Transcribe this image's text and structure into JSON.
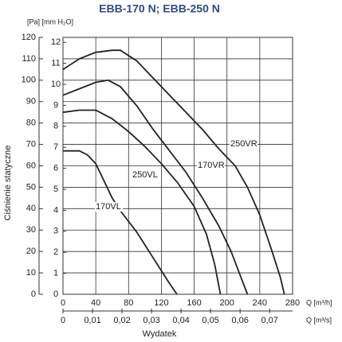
{
  "chart_data": {
    "type": "line",
    "title": "EBB-170 N; EBB-250 N",
    "y_unit_label": "[Pa] [mm H₂O]",
    "y_label": "Ciśnienie statyczne",
    "x_label": "Wydatek",
    "x_unit_label": "Q [m³/h]",
    "x2_unit_label": "Q [m³/s]",
    "xlim": [
      0,
      280
    ],
    "xticks": [
      0,
      40,
      80,
      120,
      160,
      200,
      240,
      280
    ],
    "x2lim": [
      0,
      0.07778
    ],
    "x2ticks": [
      0,
      {
        "value": 0.01,
        "label": "0,01"
      },
      {
        "value": 0.02,
        "label": "0,02"
      },
      {
        "value": 0.03,
        "label": "0,03"
      },
      {
        "value": 0.04,
        "label": "0,04"
      },
      {
        "value": 0.05,
        "label": "0,05"
      },
      {
        "value": 0.06,
        "label": "0,06"
      },
      {
        "value": 0.07,
        "label": "0,07"
      }
    ],
    "ylim": [
      0,
      120
    ],
    "yticks": [
      0,
      10,
      20,
      30,
      40,
      50,
      60,
      70,
      80,
      90,
      100,
      110,
      120
    ],
    "y2lim": [
      0,
      12.2366
    ],
    "y2ticks": [
      0,
      1,
      2,
      3,
      4,
      5,
      6,
      7,
      8,
      9,
      10,
      11,
      12
    ],
    "grid": true,
    "series": [
      {
        "name": "170VL",
        "color": "#222222",
        "x": [
          0,
          20,
          30,
          40,
          50,
          60,
          70,
          80,
          90,
          100,
          110,
          120,
          130,
          139
        ],
        "values": [
          67,
          67,
          65,
          61,
          53,
          45,
          39,
          34,
          29,
          23,
          17,
          11,
          5,
          0
        ]
      },
      {
        "name": "170VR",
        "color": "#222222",
        "x": [
          0,
          20,
          40,
          60,
          80,
          100,
          120,
          140,
          160,
          175,
          185,
          192
        ],
        "values": [
          85,
          86,
          86,
          82,
          76,
          69,
          61,
          52,
          41,
          28,
          14,
          0
        ]
      },
      {
        "name": "250VL",
        "color": "#222222",
        "x": [
          0,
          20,
          40,
          55,
          70,
          90,
          110,
          130,
          150,
          170,
          190,
          205,
          215,
          225
        ],
        "values": [
          93,
          96,
          99,
          100,
          97,
          88,
          77,
          67,
          57,
          45,
          32,
          20,
          10,
          0
        ]
      },
      {
        "name": "250VR",
        "color": "#222222",
        "x": [
          0,
          20,
          40,
          60,
          70,
          90,
          110,
          130,
          150,
          170,
          190,
          210,
          225,
          240,
          255,
          265,
          270
        ],
        "values": [
          105,
          110,
          113,
          114,
          114,
          109,
          101,
          93,
          85,
          77,
          68,
          60,
          50,
          37,
          20,
          8,
          0
        ]
      }
    ]
  }
}
